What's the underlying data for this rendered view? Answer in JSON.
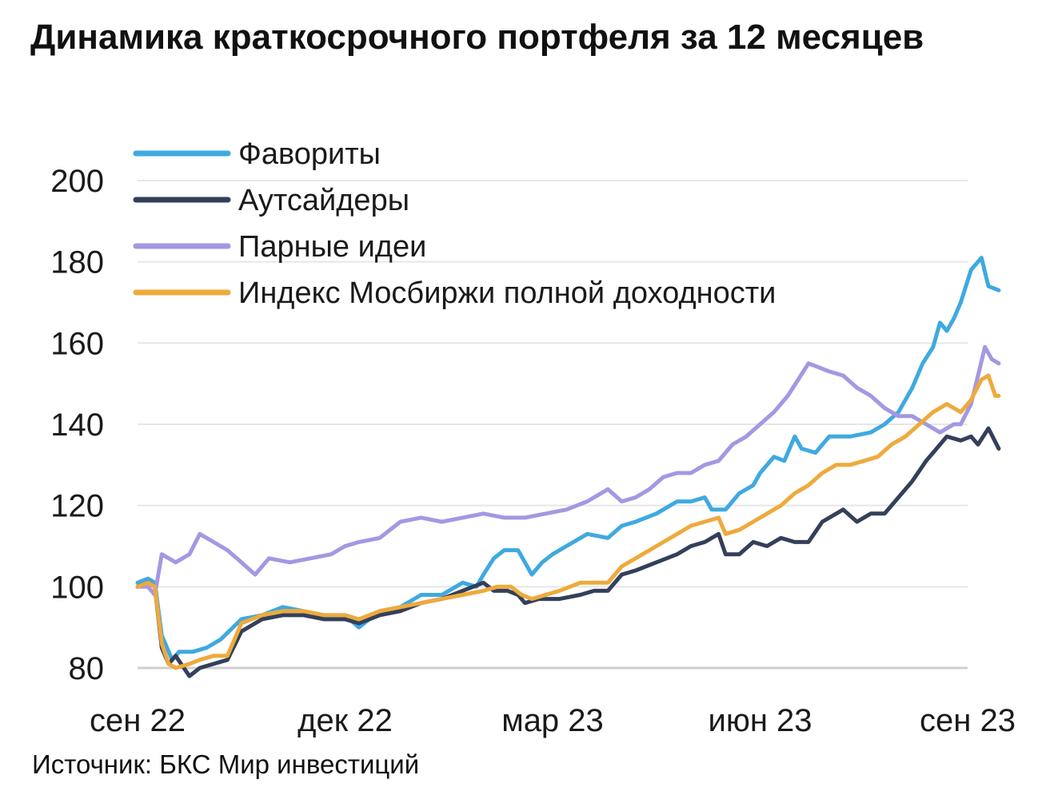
{
  "title": "Динамика краткосрочного портфеля за 12 месяцев",
  "source": "Источник: БКС Мир инвестиций",
  "chart_data": {
    "type": "line",
    "title": "Динамика краткосрочного портфеля за 12 месяцев",
    "xlabel": "",
    "ylabel": "",
    "x_ticks": [
      {
        "label": "сен 22",
        "t": 0
      },
      {
        "label": "дек 22",
        "t": 3
      },
      {
        "label": "мар 23",
        "t": 6
      },
      {
        "label": "июн 23",
        "t": 9
      },
      {
        "label": "сен 23",
        "t": 12
      }
    ],
    "x_range": [
      0,
      12
    ],
    "ylim": [
      80,
      200
    ],
    "y_ticks": [
      80,
      100,
      120,
      140,
      160,
      180,
      200
    ],
    "grid": "horizontal",
    "legend_position": "top-left",
    "series": [
      {
        "name": "Фавориты",
        "color": "#3fa9e0",
        "points": [
          [
            0,
            101
          ],
          [
            0.15,
            102
          ],
          [
            0.25,
            101
          ],
          [
            0.35,
            88
          ],
          [
            0.5,
            82
          ],
          [
            0.6,
            84
          ],
          [
            0.8,
            84
          ],
          [
            1.0,
            85
          ],
          [
            1.2,
            87
          ],
          [
            1.5,
            92
          ],
          [
            1.8,
            93
          ],
          [
            2.1,
            95
          ],
          [
            2.4,
            94
          ],
          [
            2.7,
            92
          ],
          [
            3.0,
            93
          ],
          [
            3.2,
            90
          ],
          [
            3.5,
            94
          ],
          [
            3.8,
            95
          ],
          [
            4.1,
            98
          ],
          [
            4.4,
            98
          ],
          [
            4.7,
            101
          ],
          [
            4.9,
            100
          ],
          [
            5.0,
            103
          ],
          [
            5.15,
            107
          ],
          [
            5.3,
            109
          ],
          [
            5.5,
            109
          ],
          [
            5.6,
            106
          ],
          [
            5.7,
            103
          ],
          [
            5.85,
            106
          ],
          [
            6.0,
            108
          ],
          [
            6.2,
            110
          ],
          [
            6.5,
            113
          ],
          [
            6.8,
            112
          ],
          [
            7.0,
            115
          ],
          [
            7.2,
            116
          ],
          [
            7.5,
            118
          ],
          [
            7.8,
            121
          ],
          [
            8.0,
            121
          ],
          [
            8.2,
            122
          ],
          [
            8.3,
            119
          ],
          [
            8.5,
            119
          ],
          [
            8.7,
            123
          ],
          [
            8.9,
            125
          ],
          [
            9.0,
            128
          ],
          [
            9.2,
            132
          ],
          [
            9.35,
            131
          ],
          [
            9.5,
            137
          ],
          [
            9.6,
            134
          ],
          [
            9.8,
            133
          ],
          [
            10.0,
            137
          ],
          [
            10.3,
            137
          ],
          [
            10.6,
            138
          ],
          [
            10.8,
            140
          ],
          [
            11.0,
            143
          ],
          [
            11.2,
            149
          ],
          [
            11.35,
            155
          ],
          [
            11.5,
            159
          ],
          [
            11.6,
            165
          ],
          [
            11.7,
            163
          ],
          [
            11.8,
            166
          ],
          [
            11.9,
            170
          ],
          [
            12.05,
            178
          ],
          [
            12.2,
            181
          ],
          [
            12.3,
            174
          ],
          [
            12.45,
            173
          ]
        ]
      },
      {
        "name": "Аутсайдеры",
        "color": "#34405a",
        "points": [
          [
            0,
            100
          ],
          [
            0.15,
            101
          ],
          [
            0.25,
            100
          ],
          [
            0.35,
            85
          ],
          [
            0.45,
            81
          ],
          [
            0.55,
            83
          ],
          [
            0.75,
            78
          ],
          [
            0.9,
            80
          ],
          [
            1.1,
            81
          ],
          [
            1.3,
            82
          ],
          [
            1.5,
            89
          ],
          [
            1.8,
            92
          ],
          [
            2.1,
            93
          ],
          [
            2.4,
            93
          ],
          [
            2.7,
            92
          ],
          [
            3.0,
            92
          ],
          [
            3.2,
            91
          ],
          [
            3.5,
            93
          ],
          [
            3.8,
            94
          ],
          [
            4.1,
            96
          ],
          [
            4.4,
            97
          ],
          [
            4.7,
            99
          ],
          [
            5.0,
            101
          ],
          [
            5.15,
            99
          ],
          [
            5.35,
            99
          ],
          [
            5.5,
            98
          ],
          [
            5.6,
            96
          ],
          [
            5.8,
            97
          ],
          [
            6.1,
            97
          ],
          [
            6.4,
            98
          ],
          [
            6.6,
            99
          ],
          [
            6.8,
            99
          ],
          [
            7.0,
            103
          ],
          [
            7.2,
            104
          ],
          [
            7.5,
            106
          ],
          [
            7.8,
            108
          ],
          [
            8.0,
            110
          ],
          [
            8.2,
            111
          ],
          [
            8.4,
            113
          ],
          [
            8.5,
            108
          ],
          [
            8.7,
            108
          ],
          [
            8.9,
            111
          ],
          [
            9.1,
            110
          ],
          [
            9.3,
            112
          ],
          [
            9.5,
            111
          ],
          [
            9.7,
            111
          ],
          [
            9.9,
            116
          ],
          [
            10.2,
            119
          ],
          [
            10.4,
            116
          ],
          [
            10.6,
            118
          ],
          [
            10.8,
            118
          ],
          [
            11.0,
            122
          ],
          [
            11.2,
            126
          ],
          [
            11.4,
            131
          ],
          [
            11.5,
            133
          ],
          [
            11.7,
            137
          ],
          [
            11.9,
            136
          ],
          [
            12.05,
            137
          ],
          [
            12.15,
            135
          ],
          [
            12.3,
            139
          ],
          [
            12.45,
            134
          ]
        ]
      },
      {
        "name": "Парные идеи",
        "color": "#a597e3",
        "points": [
          [
            0,
            100
          ],
          [
            0.15,
            100
          ],
          [
            0.25,
            98
          ],
          [
            0.35,
            108
          ],
          [
            0.55,
            106
          ],
          [
            0.75,
            108
          ],
          [
            0.9,
            113
          ],
          [
            1.1,
            111
          ],
          [
            1.3,
            109
          ],
          [
            1.5,
            106
          ],
          [
            1.7,
            103
          ],
          [
            1.9,
            107
          ],
          [
            2.2,
            106
          ],
          [
            2.5,
            107
          ],
          [
            2.8,
            108
          ],
          [
            3.0,
            110
          ],
          [
            3.2,
            111
          ],
          [
            3.5,
            112
          ],
          [
            3.8,
            116
          ],
          [
            4.1,
            117
          ],
          [
            4.4,
            116
          ],
          [
            4.7,
            117
          ],
          [
            5.0,
            118
          ],
          [
            5.3,
            117
          ],
          [
            5.6,
            117
          ],
          [
            5.9,
            118
          ],
          [
            6.2,
            119
          ],
          [
            6.5,
            121
          ],
          [
            6.8,
            124
          ],
          [
            7.0,
            121
          ],
          [
            7.2,
            122
          ],
          [
            7.4,
            124
          ],
          [
            7.6,
            127
          ],
          [
            7.8,
            128
          ],
          [
            8.0,
            128
          ],
          [
            8.2,
            130
          ],
          [
            8.4,
            131
          ],
          [
            8.6,
            135
          ],
          [
            8.8,
            137
          ],
          [
            9.0,
            140
          ],
          [
            9.2,
            143
          ],
          [
            9.4,
            147
          ],
          [
            9.55,
            151
          ],
          [
            9.7,
            155
          ],
          [
            9.85,
            154
          ],
          [
            10.0,
            153
          ],
          [
            10.2,
            152
          ],
          [
            10.4,
            149
          ],
          [
            10.6,
            147
          ],
          [
            10.8,
            144
          ],
          [
            11.0,
            142
          ],
          [
            11.2,
            142
          ],
          [
            11.4,
            140
          ],
          [
            11.6,
            138
          ],
          [
            11.8,
            140
          ],
          [
            11.9,
            140
          ],
          [
            12.05,
            145
          ],
          [
            12.15,
            152
          ],
          [
            12.25,
            159
          ],
          [
            12.35,
            156
          ],
          [
            12.45,
            155
          ]
        ]
      },
      {
        "name": "Индекс Мосбиржи полной доходности",
        "color": "#eeaa3c",
        "points": [
          [
            0,
            100
          ],
          [
            0.15,
            101
          ],
          [
            0.25,
            100
          ],
          [
            0.35,
            86
          ],
          [
            0.45,
            81
          ],
          [
            0.55,
            80
          ],
          [
            0.75,
            81
          ],
          [
            0.9,
            82
          ],
          [
            1.1,
            83
          ],
          [
            1.3,
            83
          ],
          [
            1.5,
            91
          ],
          [
            1.8,
            93
          ],
          [
            2.1,
            94
          ],
          [
            2.4,
            94
          ],
          [
            2.7,
            93
          ],
          [
            3.0,
            93
          ],
          [
            3.2,
            92
          ],
          [
            3.5,
            94
          ],
          [
            3.8,
            95
          ],
          [
            4.1,
            96
          ],
          [
            4.4,
            97
          ],
          [
            4.7,
            98
          ],
          [
            5.0,
            99
          ],
          [
            5.2,
            100
          ],
          [
            5.4,
            100
          ],
          [
            5.55,
            98
          ],
          [
            5.7,
            97
          ],
          [
            5.9,
            98
          ],
          [
            6.1,
            99
          ],
          [
            6.4,
            101
          ],
          [
            6.6,
            101
          ],
          [
            6.8,
            101
          ],
          [
            7.0,
            105
          ],
          [
            7.2,
            107
          ],
          [
            7.5,
            110
          ],
          [
            7.8,
            113
          ],
          [
            8.0,
            115
          ],
          [
            8.2,
            116
          ],
          [
            8.4,
            117
          ],
          [
            8.5,
            113
          ],
          [
            8.7,
            114
          ],
          [
            8.9,
            116
          ],
          [
            9.1,
            118
          ],
          [
            9.3,
            120
          ],
          [
            9.5,
            123
          ],
          [
            9.7,
            125
          ],
          [
            9.9,
            128
          ],
          [
            10.1,
            130
          ],
          [
            10.3,
            130
          ],
          [
            10.5,
            131
          ],
          [
            10.7,
            132
          ],
          [
            10.9,
            135
          ],
          [
            11.1,
            137
          ],
          [
            11.3,
            140
          ],
          [
            11.5,
            143
          ],
          [
            11.7,
            145
          ],
          [
            11.9,
            143
          ],
          [
            12.05,
            146
          ],
          [
            12.2,
            151
          ],
          [
            12.3,
            152
          ],
          [
            12.4,
            147
          ],
          [
            12.45,
            147
          ]
        ]
      }
    ]
  }
}
